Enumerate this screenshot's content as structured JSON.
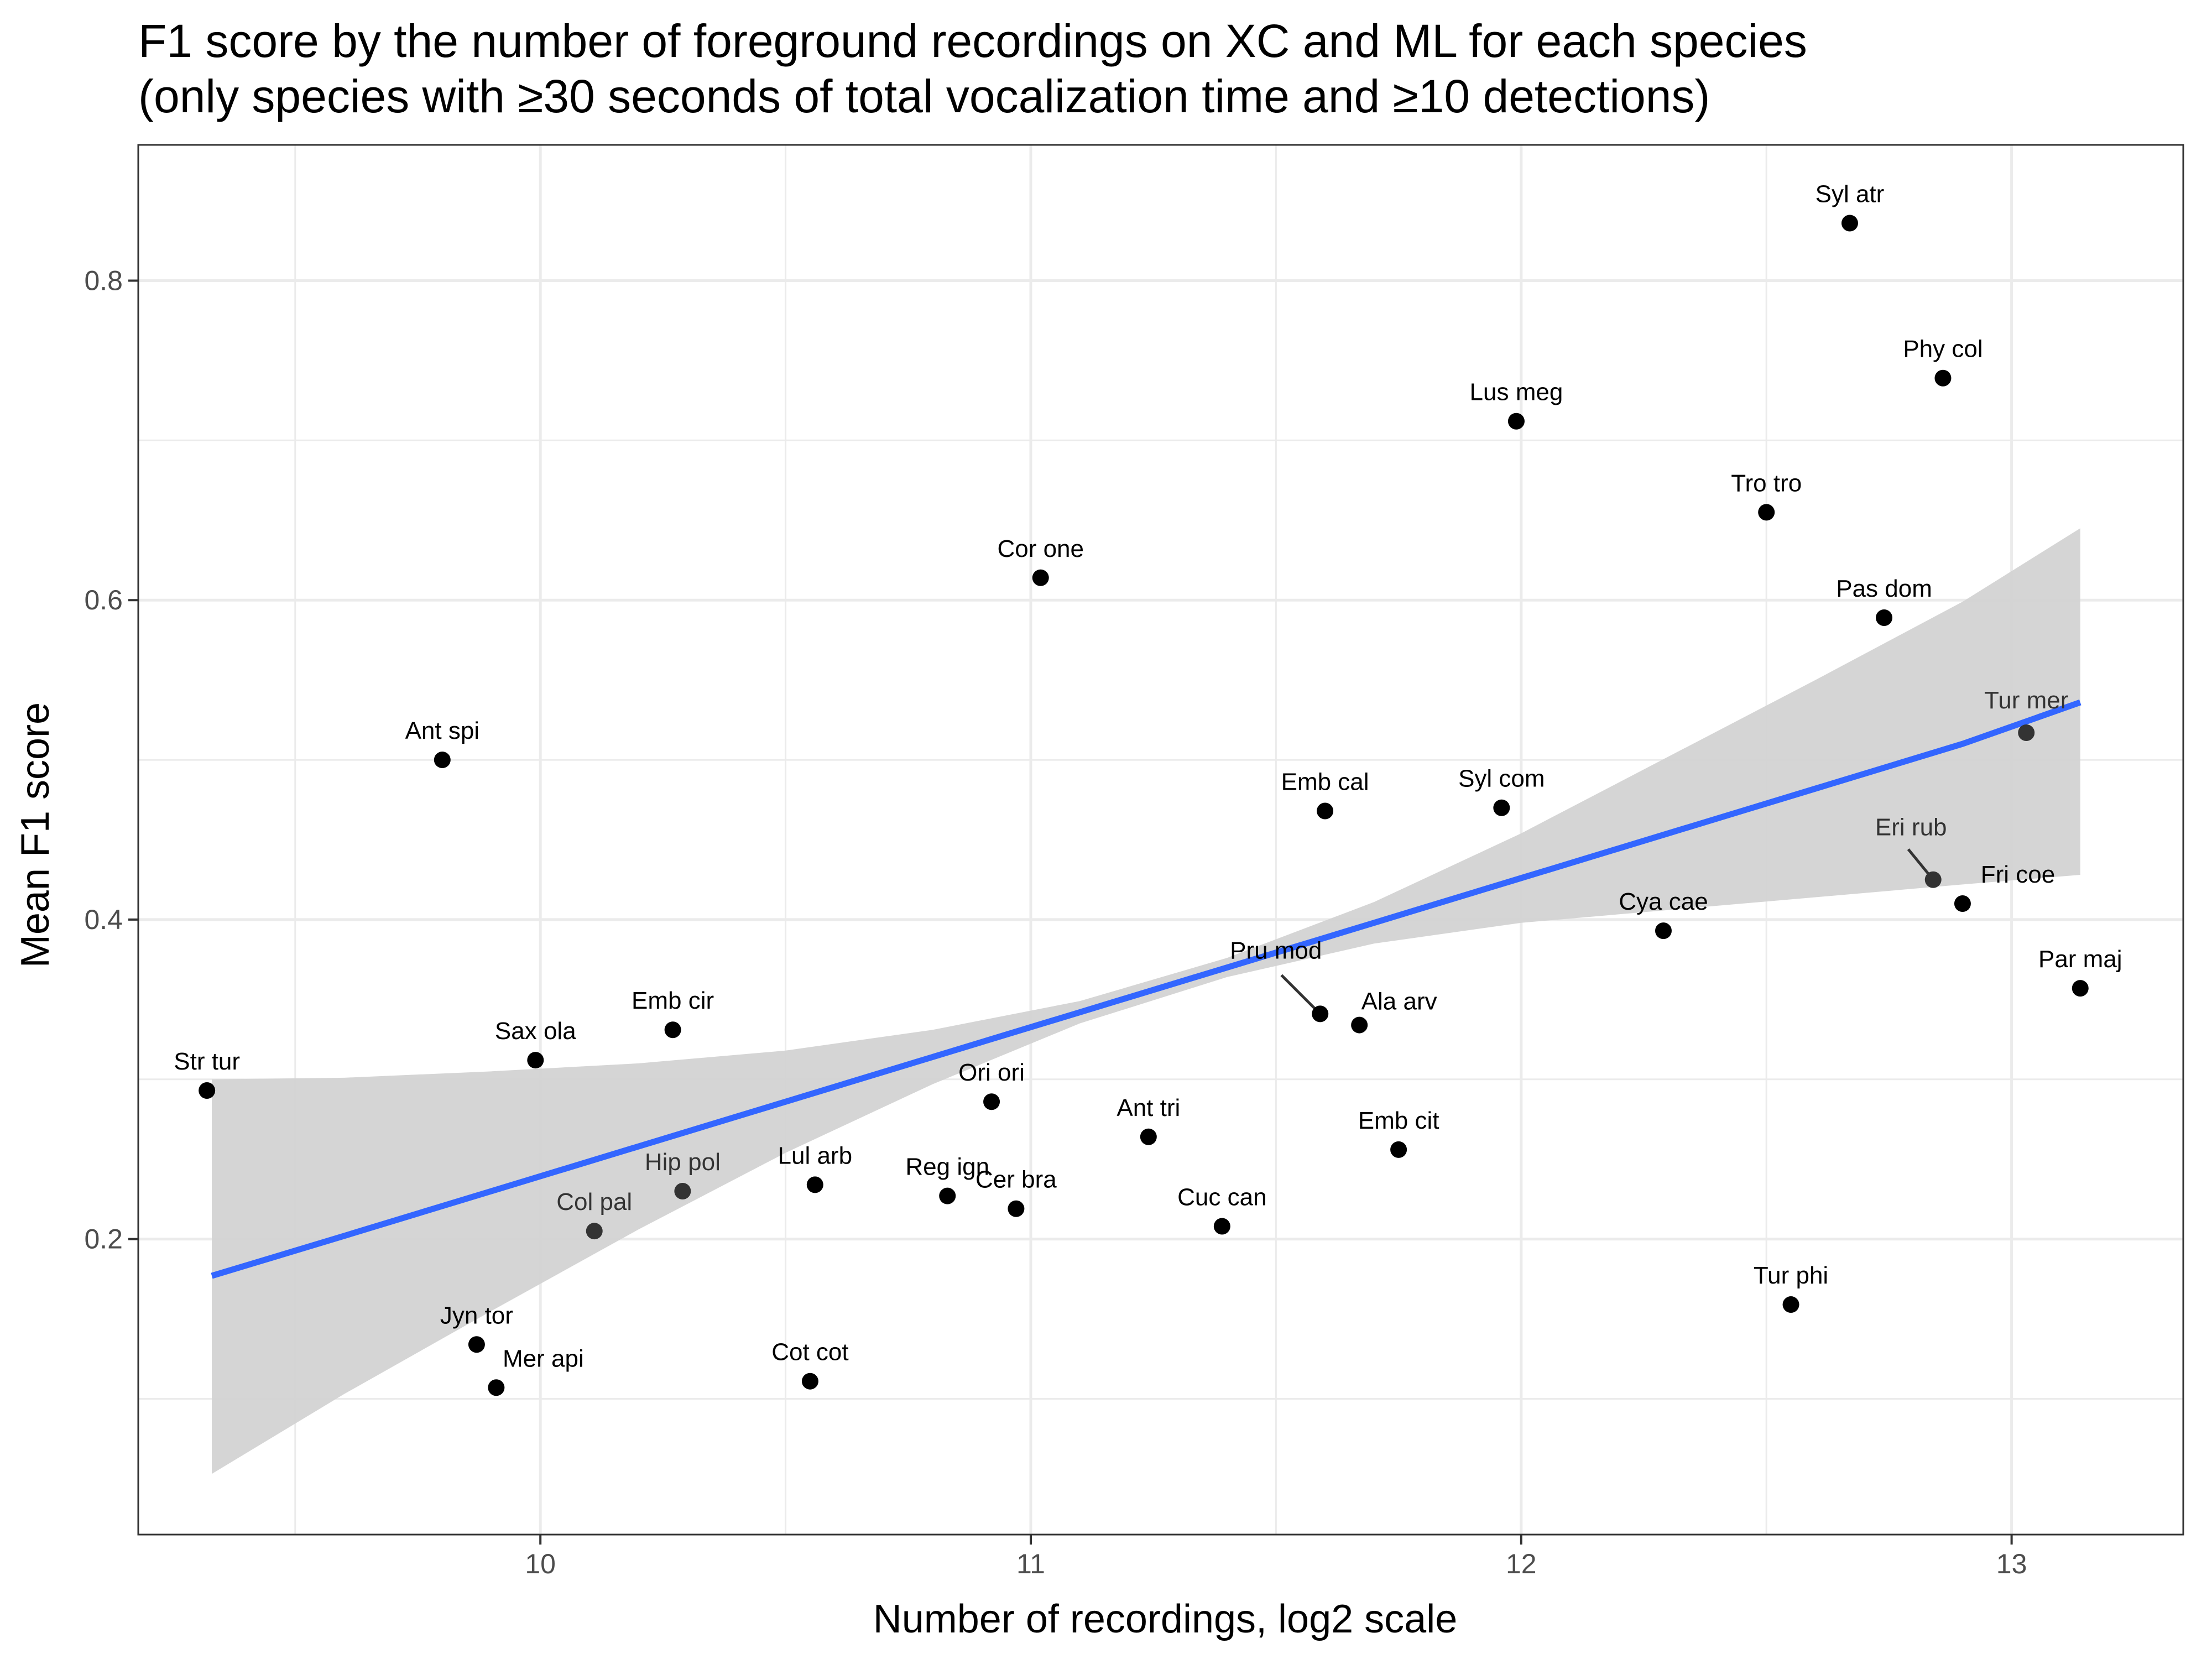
{
  "chart_data": {
    "type": "scatter",
    "title": "F1 score by the number of foreground recordings on XC and ML for each species",
    "subtitle": "(only species with ≥30 seconds of total vocalization time and ≥10 detections)",
    "xlabel": "Number of recordings, log2 scale",
    "ylabel": "Mean F1 score",
    "xlim": [
      9.18,
      13.35
    ],
    "ylim": [
      0.015,
      0.885
    ],
    "x_ticks": [
      10,
      11,
      12,
      13
    ],
    "x_tick_labels": [
      "10",
      "11",
      "12",
      "13"
    ],
    "y_ticks": [
      0.2,
      0.4,
      0.6,
      0.8
    ],
    "y_tick_labels": [
      "0.2",
      "0.4",
      "0.6",
      "0.8"
    ],
    "grid": true,
    "colors": {
      "point": "#000000",
      "point_in_band": "#333333",
      "trend_line": "#3366ff",
      "band": "#d3d3d3",
      "grid": "#ebebeb",
      "label_in_band": "#333333"
    },
    "points": [
      {
        "label": "Syl atr",
        "x": 12.67,
        "y": 0.836
      },
      {
        "label": "Phy col",
        "x": 12.86,
        "y": 0.739
      },
      {
        "label": "Lus meg",
        "x": 11.99,
        "y": 0.712
      },
      {
        "label": "Tro tro",
        "x": 12.5,
        "y": 0.655
      },
      {
        "label": "Cor one",
        "x": 11.02,
        "y": 0.614
      },
      {
        "label": "Pas dom",
        "x": 12.74,
        "y": 0.589
      },
      {
        "label": "Tur mer",
        "x": 13.03,
        "y": 0.517
      },
      {
        "label": "Ant spi",
        "x": 9.8,
        "y": 0.5
      },
      {
        "label": "Emb cal",
        "x": 11.6,
        "y": 0.468
      },
      {
        "label": "Syl com",
        "x": 11.96,
        "y": 0.47
      },
      {
        "label": "Eri rub",
        "x": 12.84,
        "y": 0.425
      },
      {
        "label": "Fri coe",
        "x": 12.9,
        "y": 0.41
      },
      {
        "label": "Cya cae",
        "x": 12.29,
        "y": 0.393
      },
      {
        "label": "Par maj",
        "x": 13.14,
        "y": 0.357
      },
      {
        "label": "Pru mod",
        "x": 11.59,
        "y": 0.341
      },
      {
        "label": "Ala arv",
        "x": 11.67,
        "y": 0.334
      },
      {
        "label": "Emb cir",
        "x": 10.27,
        "y": 0.331
      },
      {
        "label": "Sax ola",
        "x": 9.99,
        "y": 0.312
      },
      {
        "label": "Str tur",
        "x": 9.32,
        "y": 0.293
      },
      {
        "label": "Ori ori",
        "x": 10.92,
        "y": 0.286
      },
      {
        "label": "Ant tri",
        "x": 11.24,
        "y": 0.264
      },
      {
        "label": "Emb cit",
        "x": 11.75,
        "y": 0.256
      },
      {
        "label": "Lul arb",
        "x": 10.56,
        "y": 0.234
      },
      {
        "label": "Hip pol",
        "x": 10.29,
        "y": 0.23
      },
      {
        "label": "Reg ign",
        "x": 10.83,
        "y": 0.227
      },
      {
        "label": "Cer bra",
        "x": 10.97,
        "y": 0.219
      },
      {
        "label": "Cuc can",
        "x": 11.39,
        "y": 0.208
      },
      {
        "label": "Col pal",
        "x": 10.11,
        "y": 0.205
      },
      {
        "label": "Tur phi",
        "x": 12.55,
        "y": 0.159
      },
      {
        "label": "Jyn tor",
        "x": 9.87,
        "y": 0.134
      },
      {
        "label": "Cot cot",
        "x": 10.55,
        "y": 0.111
      },
      {
        "label": "Mer api",
        "x": 9.91,
        "y": 0.107
      }
    ],
    "trend": {
      "type": "linear fit with confidence band",
      "x": [
        9.33,
        9.6,
        9.9,
        10.2,
        10.5,
        10.8,
        11.1,
        11.4,
        11.7,
        12.0,
        12.3,
        12.6,
        12.9,
        13.14
      ],
      "fit": [
        0.177,
        0.202,
        0.23,
        0.258,
        0.286,
        0.314,
        0.342,
        0.37,
        0.398,
        0.426,
        0.454,
        0.482,
        0.51,
        0.536
      ],
      "lower": [
        0.053,
        0.103,
        0.155,
        0.206,
        0.254,
        0.297,
        0.335,
        0.364,
        0.385,
        0.398,
        0.406,
        0.414,
        0.422,
        0.428
      ],
      "upper": [
        0.3,
        0.301,
        0.305,
        0.31,
        0.318,
        0.331,
        0.349,
        0.376,
        0.411,
        0.454,
        0.502,
        0.55,
        0.599,
        0.645
      ]
    }
  }
}
